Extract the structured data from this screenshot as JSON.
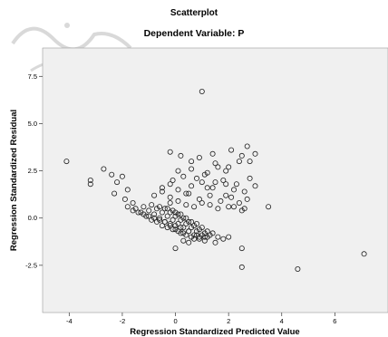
{
  "chart_data": {
    "type": "scatter",
    "title": "Scatterplot",
    "subtitle": "Dependent Variable: P",
    "xlabel": "Regression Standardized Predicted Value",
    "ylabel": "Regression Standardized Residual",
    "xlim": [
      -5,
      8
    ],
    "ylim": [
      -5,
      9
    ],
    "xticks": [
      -4,
      -2,
      0,
      2,
      4,
      6
    ],
    "xtick_labels": [
      "-4",
      "-2",
      "0",
      "2",
      "4",
      "6"
    ],
    "yticks": [
      7.5,
      5.0,
      2.5,
      0.0,
      -2.5
    ],
    "ytick_labels": [
      "7.5",
      "5.0",
      "2.5",
      "0.0",
      "-2.5"
    ],
    "grid": false,
    "legend": "none",
    "colors": {
      "plot_background": "#f0f0f0",
      "marker_edge": "#1f1f1f",
      "marker_fill": "none"
    },
    "series": [
      {
        "marker": "open-circle",
        "x": [
          -4.1,
          -3.2,
          -3.2,
          -2.7,
          -2.4,
          -2.0,
          -2.2,
          -1.8,
          -2.3,
          -1.9,
          -1.6,
          -1.8,
          -1.6,
          -1.4,
          -1.2,
          -1.0,
          -0.8,
          -0.6,
          -0.4,
          -0.2,
          0.0,
          0.2,
          -1.5,
          -1.3,
          -1.1,
          -0.9,
          -0.7,
          -0.5,
          -0.3,
          -0.1,
          0.1,
          0.3,
          0.5,
          -1.2,
          -1.0,
          -0.8,
          -0.6,
          -0.4,
          -0.2,
          0.0,
          0.2,
          0.4,
          0.6,
          0.8,
          -0.9,
          -0.7,
          -0.5,
          -0.3,
          -0.1,
          0.1,
          0.3,
          0.5,
          0.7,
          0.9,
          1.1,
          -0.6,
          -0.4,
          -0.2,
          0.0,
          0.2,
          0.4,
          0.6,
          0.8,
          1.0,
          1.2,
          -0.3,
          -0.1,
          0.1,
          0.3,
          0.5,
          0.7,
          0.9,
          1.1,
          1.3,
          0.0,
          0.2,
          0.4,
          0.6,
          0.8,
          1.0,
          1.2,
          1.4,
          1.6,
          0.3,
          0.5,
          0.7,
          0.9,
          1.1,
          1.5,
          1.8,
          2.0,
          -0.8,
          -0.5,
          -0.2,
          0.4,
          0.9,
          1.3,
          1.7,
          2.1,
          2.4,
          2.7,
          -0.5,
          -0.2,
          0.1,
          0.6,
          1.0,
          1.4,
          1.9,
          2.2,
          2.6,
          3.0,
          -0.1,
          0.3,
          0.8,
          1.1,
          1.5,
          1.8,
          2.3,
          2.8,
          -0.2,
          0.1,
          0.4,
          0.7,
          1.0,
          1.3,
          1.6,
          2.0,
          2.5,
          1.5,
          2.0,
          2.4,
          1.0,
          -0.2,
          0.2,
          0.6,
          0.9,
          1.4,
          2.1,
          2.5,
          2.7,
          2.8,
          3.0,
          0.1,
          0.6,
          1.2,
          1.6,
          1.9,
          0.5,
          1.2,
          1.9,
          2.2,
          2.6,
          3.5,
          4.6,
          7.1,
          2.5,
          2.5,
          0.0
        ],
        "y": [
          3.0,
          2.0,
          1.8,
          2.6,
          2.3,
          2.2,
          1.9,
          1.5,
          1.3,
          1.0,
          0.8,
          0.6,
          0.4,
          0.3,
          0.2,
          0.1,
          0.0,
          -0.1,
          -0.2,
          -0.3,
          -0.4,
          -0.5,
          0.5,
          0.3,
          0.1,
          -0.1,
          -0.2,
          -0.4,
          -0.5,
          -0.6,
          -0.7,
          -0.8,
          -0.7,
          0.6,
          0.4,
          0.2,
          0.0,
          -0.2,
          -0.4,
          -0.6,
          -0.8,
          -0.9,
          -1.0,
          -0.9,
          0.7,
          0.5,
          0.3,
          0.1,
          -0.1,
          -0.3,
          -0.5,
          -0.7,
          -0.9,
          -1.1,
          -1.0,
          0.6,
          0.5,
          0.3,
          0.1,
          -0.1,
          -0.3,
          -0.5,
          -0.7,
          -0.9,
          -1.0,
          0.5,
          0.4,
          0.2,
          0.0,
          -0.2,
          -0.4,
          -0.6,
          -0.8,
          -0.9,
          0.3,
          0.2,
          0.0,
          -0.2,
          -0.3,
          -0.5,
          -0.7,
          -0.8,
          -1.0,
          -1.2,
          -1.3,
          -1.1,
          -1.0,
          -1.2,
          -1.3,
          -1.1,
          -1.0,
          1.2,
          1.4,
          1.1,
          1.3,
          1.0,
          1.2,
          0.9,
          1.1,
          0.8,
          1.0,
          1.6,
          1.8,
          1.5,
          1.7,
          1.9,
          1.6,
          1.8,
          1.5,
          1.4,
          1.7,
          2.0,
          2.2,
          2.1,
          2.3,
          1.9,
          2.0,
          1.8,
          2.1,
          0.8,
          0.9,
          0.7,
          0.6,
          0.8,
          0.7,
          0.5,
          0.6,
          0.4,
          2.9,
          2.7,
          3.0,
          6.7,
          3.5,
          3.3,
          3.0,
          3.2,
          3.4,
          3.6,
          3.3,
          3.8,
          3.0,
          3.4,
          2.5,
          2.6,
          2.4,
          2.7,
          2.5,
          1.3,
          1.6,
          1.2,
          0.6,
          0.5,
          0.6,
          -2.7,
          -1.9,
          -1.6,
          -2.6,
          -1.6
        ]
      }
    ]
  }
}
